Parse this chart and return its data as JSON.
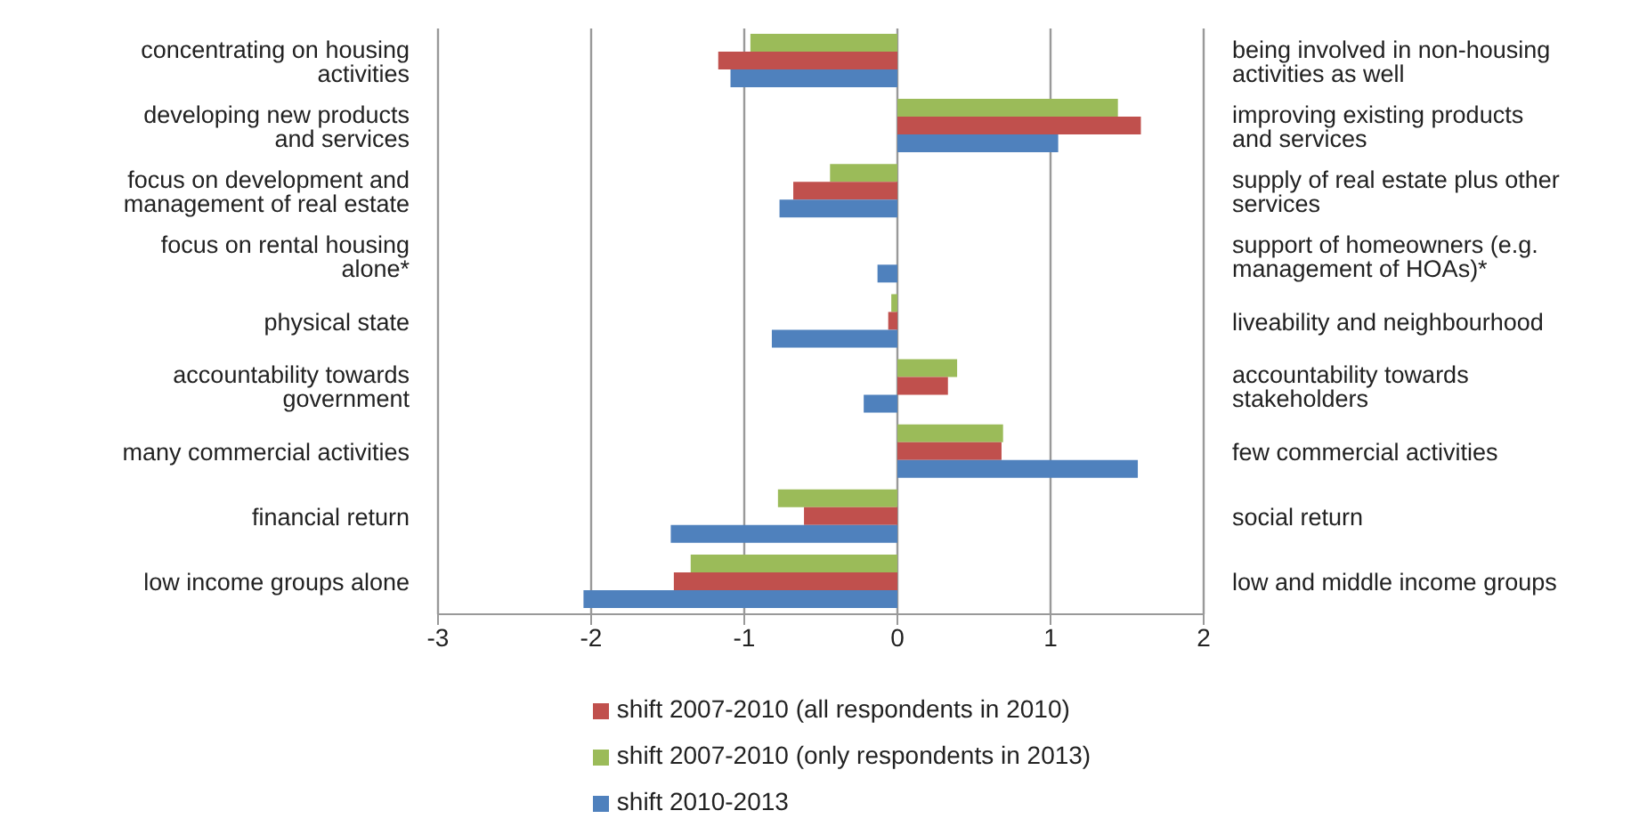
{
  "chart_data": {
    "type": "bar",
    "orientation": "horizontal",
    "categories": [
      "concentrating on housing activities",
      "developing new products and services",
      "focus on development and management of real estate",
      "focus on rental housing alone*",
      "physical state",
      "accountability towards government",
      "many commercial activities",
      "financial return",
      "low income groups alone"
    ],
    "y2_categories": [
      "being involved in non-housing activities as well",
      "improving existing products and services",
      "supply of real estate plus other services",
      "support of homeowners (e.g. management of HOAs)*",
      "liveability and neighbourhood",
      "accountability towards stakeholders",
      "few commercial activities",
      "social return",
      "low and middle income groups"
    ],
    "series": [
      {
        "name": "shift 2007-2010 (only respondents in 2013)",
        "color": "#9bbb59",
        "values": [
          -0.96,
          1.44,
          -0.44,
          null,
          -0.04,
          0.39,
          0.69,
          -0.78,
          -1.35
        ]
      },
      {
        "name": "shift 2007-2010 (all respondents in 2010)",
        "color": "#c0504d",
        "values": [
          -1.17,
          1.59,
          -0.68,
          null,
          -0.06,
          0.33,
          0.68,
          -0.61,
          -1.46
        ]
      },
      {
        "name": "shift 2010-2013",
        "color": "#4f81bd",
        "values": [
          -1.09,
          1.05,
          -0.77,
          -0.13,
          -0.82,
          -0.22,
          1.57,
          -1.48,
          -2.05
        ]
      }
    ],
    "xlim": [
      -3,
      2
    ],
    "xticks": [
      -3,
      -2,
      -1,
      0,
      1,
      2
    ],
    "grid": "x",
    "legend": "bottom"
  }
}
